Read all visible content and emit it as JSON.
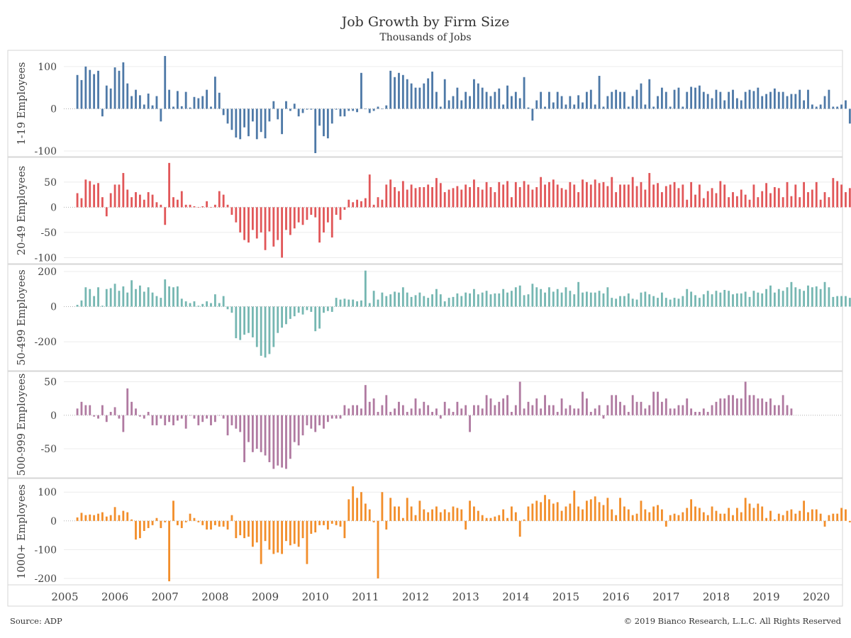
{
  "header": {
    "title": "Job Growth by Firm Size",
    "subtitle": "Thousands of Jobs"
  },
  "footer": {
    "source": "Source: ADP",
    "copyright": "© 2019 Bianco Research, L.L.C. All Rights Reserved"
  },
  "chart_data": {
    "type": "bar",
    "x_start": "2005-04",
    "x_end": "2019-10",
    "x_ticks": [
      "2005",
      "2006",
      "2007",
      "2008",
      "2009",
      "2010",
      "2011",
      "2012",
      "2013",
      "2014",
      "2015",
      "2016",
      "2017",
      "2018",
      "2019",
      "2020"
    ],
    "grid": true,
    "legend": "none",
    "panels": [
      {
        "name": "1-19 Employees",
        "color": "#4e79a7",
        "ylim": [
          -105,
          130
        ],
        "yticks": [
          -100,
          0,
          100
        ],
        "values": [
          80,
          68,
          100,
          92,
          82,
          90,
          -18,
          55,
          48,
          98,
          90,
          110,
          60,
          30,
          45,
          32,
          10,
          36,
          8,
          30,
          -30,
          125,
          45,
          5,
          42,
          6,
          40,
          3,
          28,
          25,
          30,
          45,
          5,
          76,
          38,
          -15,
          -35,
          -50,
          -68,
          -72,
          -44,
          -65,
          -30,
          -72,
          -55,
          -70,
          -30,
          18,
          -25,
          -60,
          18,
          -5,
          12,
          -18,
          -10,
          -2,
          -2,
          -105,
          -40,
          -65,
          -70,
          -35,
          -2,
          -18,
          -18,
          -5,
          -5,
          -8,
          85,
          0,
          -10,
          -5,
          5,
          0,
          8,
          90,
          75,
          85,
          80,
          70,
          60,
          50,
          50,
          60,
          72,
          88,
          40,
          5,
          70,
          20,
          30,
          50,
          20,
          40,
          30,
          70,
          60,
          50,
          40,
          30,
          40,
          48,
          10,
          55,
          30,
          40,
          25,
          75,
          3,
          -28,
          20,
          40,
          5,
          40,
          15,
          40,
          30,
          10,
          30,
          10,
          32,
          15,
          40,
          45,
          10,
          78,
          5,
          30,
          40,
          45,
          40,
          40,
          5,
          30,
          45,
          60,
          10,
          70,
          5,
          30,
          50,
          40,
          5,
          45,
          50,
          5,
          40,
          52,
          50,
          55,
          40,
          35,
          25,
          45,
          40,
          20,
          40,
          45,
          25,
          20,
          40,
          45,
          42,
          50,
          30,
          35,
          40,
          48,
          40,
          40,
          30,
          35,
          35,
          45,
          20,
          45,
          10,
          5,
          10,
          30,
          45,
          5,
          5,
          10,
          20,
          -35,
          -22,
          -30,
          -15,
          5,
          25,
          -5,
          -15
        ]
      },
      {
        "name": "20-49 Employees",
        "color": "#e15759",
        "ylim": [
          -105,
          92
        ],
        "yticks": [
          -100,
          -50,
          0,
          50
        ],
        "values": [
          28,
          18,
          55,
          52,
          45,
          48,
          20,
          -18,
          28,
          45,
          45,
          68,
          35,
          20,
          30,
          25,
          15,
          30,
          25,
          10,
          5,
          -35,
          88,
          20,
          15,
          32,
          5,
          5,
          2,
          0,
          2,
          12,
          0,
          5,
          32,
          25,
          5,
          -15,
          -30,
          -50,
          -65,
          -70,
          -45,
          -62,
          -50,
          -85,
          -48,
          -78,
          -65,
          -100,
          -45,
          -55,
          -42,
          -30,
          -35,
          -25,
          -15,
          -20,
          -70,
          -50,
          -30,
          -60,
          -15,
          -25,
          -5,
          15,
          10,
          15,
          12,
          18,
          65,
          5,
          20,
          15,
          45,
          55,
          40,
          32,
          52,
          35,
          45,
          38,
          40,
          40,
          45,
          40,
          58,
          48,
          30,
          35,
          38,
          42,
          35,
          45,
          40,
          55,
          40,
          35,
          50,
          40,
          30,
          50,
          45,
          52,
          20,
          50,
          40,
          52,
          45,
          35,
          40,
          60,
          45,
          50,
          55,
          45,
          38,
          35,
          50,
          45,
          30,
          55,
          50,
          45,
          55,
          48,
          50,
          42,
          60,
          30,
          45,
          45,
          45,
          60,
          42,
          50,
          35,
          68,
          45,
          48,
          30,
          42,
          45,
          50,
          38,
          45,
          15,
          50,
          25,
          45,
          18,
          32,
          38,
          28,
          52,
          45,
          20,
          30,
          22,
          35,
          25,
          15,
          45,
          20,
          32,
          48,
          28,
          40,
          38,
          20,
          50,
          22,
          45,
          20,
          50,
          30,
          35,
          50,
          15,
          30,
          20,
          58,
          52,
          45,
          30,
          38,
          15,
          45,
          22,
          18,
          30,
          25,
          25,
          28,
          32
        ]
      },
      {
        "name": "50-499 Employees",
        "color": "#76b7b2",
        "ylim": [
          -345,
          220
        ],
        "yticks": [
          -200,
          0,
          200
        ],
        "values": [
          10,
          35,
          110,
          100,
          60,
          110,
          5,
          100,
          105,
          130,
          90,
          115,
          80,
          150,
          100,
          120,
          85,
          110,
          80,
          60,
          50,
          155,
          115,
          110,
          115,
          45,
          30,
          20,
          30,
          5,
          15,
          30,
          20,
          70,
          20,
          60,
          -15,
          -35,
          -180,
          -190,
          -160,
          -150,
          -175,
          -230,
          -280,
          -290,
          -270,
          -230,
          -150,
          -120,
          -100,
          -70,
          -55,
          -35,
          -45,
          -20,
          -30,
          -140,
          -125,
          -35,
          -25,
          -30,
          50,
          40,
          45,
          40,
          40,
          30,
          35,
          205,
          20,
          90,
          40,
          80,
          60,
          70,
          85,
          80,
          110,
          80,
          55,
          65,
          80,
          60,
          50,
          70,
          100,
          70,
          30,
          50,
          55,
          75,
          60,
          80,
          75,
          100,
          70,
          80,
          90,
          70,
          75,
          75,
          100,
          80,
          90,
          110,
          120,
          65,
          70,
          130,
          110,
          100,
          80,
          110,
          85,
          100,
          80,
          110,
          90,
          70,
          140,
          80,
          85,
          80,
          80,
          90,
          75,
          110,
          50,
          45,
          60,
          60,
          75,
          45,
          40,
          80,
          85,
          70,
          60,
          50,
          80,
          50,
          40,
          50,
          45,
          60,
          100,
          85,
          65,
          50,
          70,
          90,
          70,
          90,
          80,
          95,
          90,
          70,
          75,
          75,
          85,
          55,
          90,
          80,
          75,
          100,
          120,
          80,
          100,
          90,
          110,
          140,
          110,
          100,
          90,
          120,
          110,
          115,
          100,
          140,
          110,
          55,
          60,
          60,
          60,
          50,
          65
        ]
      },
      {
        "name": "500-999 Employees",
        "color": "#b07aa1",
        "ylim": [
          -88,
          60
        ],
        "yticks": [
          -50,
          0,
          50
        ],
        "values": [
          10,
          20,
          15,
          15,
          -2,
          -5,
          15,
          -10,
          5,
          12,
          -5,
          -25,
          40,
          20,
          10,
          -2,
          -5,
          5,
          -15,
          -15,
          -5,
          -15,
          -10,
          -15,
          -8,
          -5,
          -20,
          0,
          -5,
          -15,
          -10,
          -5,
          -15,
          -10,
          0,
          -5,
          -30,
          -15,
          -20,
          -25,
          -70,
          -40,
          -55,
          -50,
          -55,
          -60,
          -70,
          -80,
          -75,
          -78,
          -80,
          -65,
          -40,
          -45,
          -30,
          -15,
          -20,
          -25,
          -15,
          -20,
          -10,
          -5,
          -5,
          -5,
          15,
          10,
          15,
          15,
          10,
          45,
          20,
          25,
          5,
          15,
          30,
          5,
          10,
          20,
          15,
          5,
          10,
          25,
          10,
          20,
          15,
          5,
          10,
          -5,
          20,
          10,
          5,
          20,
          10,
          15,
          -25,
          15,
          15,
          10,
          30,
          25,
          15,
          20,
          25,
          30,
          5,
          15,
          50,
          10,
          20,
          15,
          25,
          10,
          30,
          15,
          15,
          5,
          25,
          10,
          15,
          10,
          10,
          35,
          25,
          5,
          10,
          15,
          -5,
          15,
          30,
          30,
          20,
          15,
          5,
          30,
          20,
          20,
          10,
          15,
          35,
          35,
          20,
          25,
          10,
          10,
          15,
          15,
          25,
          10,
          5,
          5,
          10,
          5,
          15,
          20,
          25,
          25,
          30,
          30,
          25,
          25,
          50,
          30,
          30,
          25,
          25,
          20,
          25,
          15,
          15,
          30,
          15,
          10
        ]
      },
      {
        "name": "1000+ Employees",
        "color": "#f28e2b",
        "ylim": [
          -210,
          135
        ],
        "yticks": [
          -200,
          -100,
          0,
          100
        ],
        "values": [
          12,
          28,
          20,
          22,
          20,
          25,
          30,
          15,
          20,
          48,
          20,
          35,
          30,
          5,
          -65,
          -60,
          -35,
          -25,
          -15,
          10,
          -25,
          -5,
          -210,
          70,
          -15,
          -25,
          -5,
          25,
          10,
          -5,
          -15,
          -30,
          -30,
          -15,
          -20,
          -20,
          -30,
          20,
          -60,
          -50,
          -60,
          -55,
          -90,
          -75,
          -150,
          -70,
          -100,
          -115,
          -110,
          -115,
          -70,
          -85,
          -80,
          -90,
          -60,
          -150,
          -45,
          -40,
          -15,
          -15,
          -30,
          -10,
          -15,
          -20,
          -60,
          75,
          120,
          80,
          100,
          60,
          40,
          -5,
          -200,
          100,
          -30,
          80,
          50,
          50,
          10,
          80,
          50,
          20,
          70,
          40,
          30,
          40,
          50,
          30,
          40,
          30,
          50,
          45,
          40,
          -30,
          70,
          50,
          35,
          20,
          10,
          10,
          15,
          20,
          40,
          10,
          50,
          30,
          -55,
          5,
          50,
          60,
          70,
          65,
          90,
          75,
          60,
          65,
          35,
          50,
          60,
          105,
          50,
          40,
          70,
          75,
          85,
          65,
          55,
          80,
          40,
          20,
          80,
          50,
          40,
          20,
          25,
          70,
          40,
          30,
          50,
          55,
          40,
          -20,
          20,
          25,
          20,
          30,
          45,
          75,
          50,
          45,
          30,
          20,
          50,
          35,
          25,
          25,
          45,
          20,
          45,
          30,
          80,
          60,
          45,
          60,
          50,
          10,
          35,
          5,
          25,
          20,
          35,
          40,
          25,
          35,
          70,
          30,
          40,
          40,
          25,
          -20,
          20,
          25,
          25,
          45,
          40,
          -5,
          65,
          25,
          25,
          45,
          35,
          35
        ]
      }
    ]
  }
}
